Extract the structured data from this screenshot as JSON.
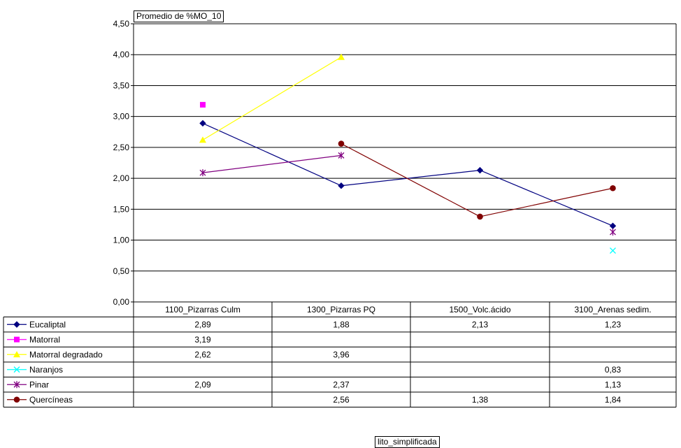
{
  "chart_data": {
    "type": "line",
    "title": "Promedio de %MO_10",
    "xlabel": "lito_simplificada",
    "ylabel": "",
    "ylim": [
      0,
      4.5
    ],
    "yticks": [
      "0,00",
      "0,50",
      "1,00",
      "1,50",
      "2,00",
      "2,50",
      "3,00",
      "3,50",
      "4,00",
      "4,50"
    ],
    "grid": true,
    "legend": "table-below",
    "categories": [
      "1100_Pizarras Culm",
      "1300_Pizarras PQ",
      "1500_Volc.ácido",
      "3100_Arenas sedim."
    ],
    "series": [
      {
        "name": "Eucaliptal",
        "marker": "diamond",
        "color": "#000080",
        "values": [
          2.89,
          1.88,
          2.13,
          1.23
        ],
        "labels": [
          "2,89",
          "1,88",
          "2,13",
          "1,23"
        ]
      },
      {
        "name": "Matorral",
        "marker": "square",
        "color": "#ff00ff",
        "values": [
          3.19,
          null,
          null,
          null
        ],
        "labels": [
          "3,19",
          "",
          "",
          ""
        ]
      },
      {
        "name": "Matorral degradado",
        "marker": "triangle",
        "color": "#ffff00",
        "values": [
          2.62,
          3.96,
          null,
          null
        ],
        "labels": [
          "2,62",
          "3,96",
          "",
          ""
        ]
      },
      {
        "name": "Naranjos",
        "marker": "x",
        "color": "#00ffff",
        "values": [
          null,
          null,
          null,
          0.83
        ],
        "labels": [
          "",
          "",
          "",
          "0,83"
        ]
      },
      {
        "name": "Pinar",
        "marker": "star",
        "color": "#800080",
        "values": [
          2.09,
          2.37,
          null,
          1.13
        ],
        "labels": [
          "2,09",
          "2,37",
          "",
          "1,13"
        ]
      },
      {
        "name": "Quercíneas",
        "marker": "circle",
        "color": "#800000",
        "values": [
          null,
          2.56,
          1.38,
          1.84
        ],
        "labels": [
          "",
          "2,56",
          "1,38",
          "1,84"
        ]
      }
    ]
  }
}
